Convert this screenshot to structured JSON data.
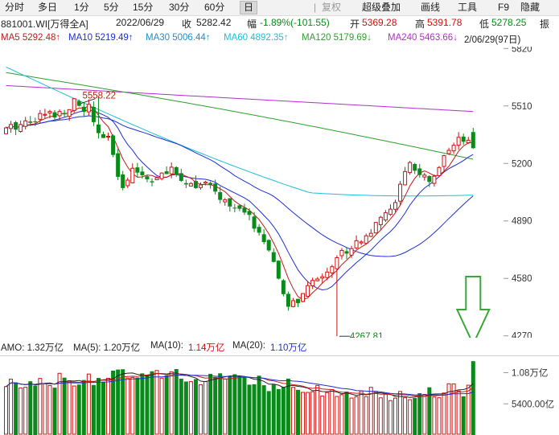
{
  "toolbar": {
    "items": [
      {
        "label": "分时",
        "selected": false
      },
      {
        "label": "多日",
        "selected": false
      },
      {
        "label": "1分",
        "selected": false
      },
      {
        "label": "5分",
        "selected": false
      },
      {
        "label": "15分",
        "selected": false
      },
      {
        "label": "30分",
        "selected": false
      },
      {
        "label": "60分",
        "selected": false
      },
      {
        "label": "日",
        "selected": true
      }
    ],
    "right_items": [
      "复权",
      "超级叠加",
      "画线",
      "工具",
      "F9",
      "隐藏"
    ]
  },
  "info": {
    "code": "881001.WI[万得全A]",
    "date": "2022/06/29",
    "close_label": "收",
    "close": "5282.42",
    "change_label": "幅",
    "change": "-1.89%(-101.55)",
    "open_label": "开",
    "open": "5369.28",
    "high_label": "高",
    "high": "5391.78",
    "low_label": "低",
    "low": "5278.25",
    "amp_label": "振"
  },
  "ma": {
    "ma5": "MA5 5292.48↑",
    "ma10": "MA10 5219.49↑",
    "ma30": "MA30 5006.44↑",
    "ma60": "MA60 4892.35↑",
    "ma120": "MA120 5179.69↓",
    "ma240": "MA240 5463.66↓",
    "range": "2/06/29(97日)"
  },
  "colors": {
    "up": "#d01010",
    "down": "#0a8a1a",
    "ma5": "#c41a1a",
    "ma10": "#1e2fd0",
    "ma30": "#1ebfd8",
    "ma60": "#2da02d",
    "ma240": "#b030c8",
    "arrow": "#3aa63a"
  },
  "price_axis": {
    "ticks": [
      "5820",
      "5510",
      "5200",
      "4890",
      "4580",
      "4270"
    ]
  },
  "annotations": {
    "high_mark": "5558.22",
    "low_mark": "4267.81"
  },
  "amo": {
    "amo": "AMO: 1.32万亿",
    "ma5": "MA(5): 1.20万亿",
    "ma10_label": "MA(10): ",
    "ma10": "1.14万亿",
    "ma20_label": "MA(20): ",
    "ma20": "1.10万亿"
  },
  "volume_axis": {
    "ticks": [
      "1.08万亿",
      "5400.00亿"
    ]
  },
  "chart_data": {
    "type": "candlestick",
    "price_range": [
      4260,
      5830
    ],
    "last_candle": {
      "open": 5369.28,
      "high": 5391.78,
      "low": 5278.25,
      "close": 5282.42
    },
    "high_point": 5558.22,
    "low_point": 4267.81,
    "volume_range_yi": [
      0,
      13800
    ],
    "last_volume_yi": 13200
  }
}
